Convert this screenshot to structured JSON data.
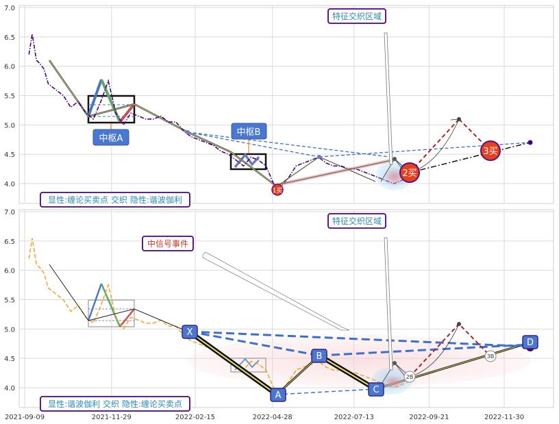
{
  "chart_data": [
    {
      "type": "line",
      "title": "",
      "ylim": [
        3.65,
        7.0
      ],
      "yticks": [
        4.0,
        4.5,
        5.0,
        5.5,
        6.0,
        6.5,
        7.0
      ],
      "grid": true,
      "series": [
        {
          "style": "dash-dot",
          "color": "#4b0082",
          "x": [
            "2021-09-13",
            "2021-09-16",
            "2021-09-20",
            "2021-09-23",
            "2021-09-27",
            "2021-10-01",
            "2021-10-08",
            "2021-10-15",
            "2021-10-22",
            "2021-10-29",
            "2021-11-05",
            "2021-11-12",
            "2021-11-19",
            "2021-11-26",
            "2021-12-03",
            "2021-12-10",
            "2021-12-17",
            "2021-12-24",
            "2021-12-31",
            "2022-01-07",
            "2022-01-14",
            "2022-01-21",
            "2022-01-28",
            "2022-02-04",
            "2022-02-11",
            "2022-02-18",
            "2022-02-25",
            "2022-03-04",
            "2022-03-11",
            "2022-03-18",
            "2022-03-25",
            "2022-04-01",
            "2022-04-08",
            "2022-04-15",
            "2022-04-22",
            "2022-04-29",
            "2022-05-06",
            "2022-05-13",
            "2022-05-20",
            "2022-05-27",
            "2022-06-03",
            "2022-06-10",
            "2022-06-17",
            "2022-06-24",
            "2022-07-01",
            "2022-07-08",
            "2022-07-15",
            "2022-07-22",
            "2022-07-29",
            "2022-08-05",
            "2022-08-12",
            "2022-08-19",
            "2022-08-26",
            "2022-09-02"
          ],
          "y": [
            6.2,
            6.55,
            6.1,
            6.05,
            5.95,
            5.7,
            5.6,
            5.5,
            5.3,
            5.4,
            5.2,
            5.1,
            5.4,
            5.75,
            5.2,
            5.0,
            5.2,
            5.15,
            5.1,
            5.1,
            5.15,
            5.05,
            5.05,
            4.9,
            4.8,
            4.75,
            4.7,
            4.65,
            4.55,
            4.5,
            4.4,
            4.3,
            4.45,
            4.4,
            4.3,
            4.0,
            3.95,
            4.1,
            4.3,
            4.35,
            4.4,
            4.45,
            4.35,
            4.3,
            4.3,
            4.25,
            4.25,
            4.2,
            4.15,
            4.1,
            4.05,
            4.0,
            4.05,
            4.1
          ]
        }
      ],
      "annotations": {
        "zhongshu": [
          {
            "label": "中枢A",
            "x_range": [
              "2021-11-19",
              "2022-01-02"
            ],
            "y_range": [
              5.02,
              5.48
            ]
          },
          {
            "label": "中枢B",
            "x_range": [
              "2022-03-28",
              "2022-04-24"
            ],
            "y_range": [
              4.27,
              4.5
            ]
          }
        ],
        "signals": [
          {
            "label": "1买",
            "x": "2022-05-06",
            "y": 3.92
          },
          {
            "label": "2买",
            "x": "2022-09-19",
            "y": 4.17
          },
          {
            "label": "3买",
            "x": "2022-11-24",
            "y": 4.57
          }
        ],
        "feature_region": "特征交织区域",
        "legend": "显性:缠论买卖点 交织 隐性:谐波伽利"
      }
    },
    {
      "type": "line",
      "title": "",
      "ylim": [
        3.65,
        7.0
      ],
      "yticks": [
        4.0,
        4.5,
        5.0,
        5.5,
        6.0,
        6.5,
        7.0
      ],
      "xticks": [
        "2021-09-09",
        "2021-11-29",
        "2022-02-15",
        "2022-04-28",
        "2022-07-13",
        "2022-09-21",
        "2022-11-30"
      ],
      "grid": true,
      "series": [
        {
          "style": "dashed",
          "color": "#f0a830",
          "x": [
            "2021-09-13",
            "2021-09-16",
            "2021-09-20",
            "2021-09-23",
            "2021-09-27",
            "2021-10-01",
            "2021-10-08",
            "2021-10-15",
            "2021-10-22",
            "2021-10-29",
            "2021-11-05",
            "2021-11-12",
            "2021-11-19",
            "2021-11-26",
            "2021-12-03",
            "2021-12-10",
            "2021-12-17",
            "2021-12-24",
            "2021-12-31",
            "2022-01-07",
            "2022-01-14",
            "2022-01-21",
            "2022-01-28",
            "2022-02-04",
            "2022-02-11",
            "2022-02-18",
            "2022-02-25",
            "2022-03-04",
            "2022-03-11",
            "2022-03-18",
            "2022-03-25",
            "2022-04-01",
            "2022-04-08",
            "2022-04-15",
            "2022-04-22",
            "2022-04-29",
            "2022-05-06",
            "2022-05-13",
            "2022-05-20",
            "2022-05-27",
            "2022-06-03",
            "2022-06-10",
            "2022-06-17",
            "2022-06-24",
            "2022-07-01",
            "2022-07-08",
            "2022-07-15",
            "2022-07-22",
            "2022-07-29",
            "2022-08-05",
            "2022-08-12",
            "2022-08-19",
            "2022-08-26",
            "2022-09-02"
          ],
          "y": [
            6.2,
            6.55,
            6.1,
            6.05,
            5.95,
            5.7,
            5.6,
            5.5,
            5.3,
            5.4,
            5.2,
            5.1,
            5.4,
            5.75,
            5.2,
            5.0,
            5.2,
            5.15,
            5.1,
            5.1,
            5.15,
            5.05,
            5.05,
            4.9,
            4.8,
            4.75,
            4.7,
            4.65,
            4.55,
            4.5,
            4.4,
            4.3,
            4.45,
            4.4,
            4.3,
            4.0,
            3.95,
            4.1,
            4.3,
            4.35,
            4.4,
            4.45,
            4.35,
            4.3,
            4.3,
            4.25,
            4.25,
            4.2,
            4.15,
            4.1,
            4.05,
            4.0,
            4.05,
            4.1
          ]
        }
      ],
      "annotations": {
        "harmonic_points": [
          {
            "label": "X",
            "x": "2022-02-15",
            "y": 4.93
          },
          {
            "label": "A",
            "x": "2022-05-03",
            "y": 3.94
          },
          {
            "label": "B",
            "x": "2022-07-05",
            "y": 4.55
          },
          {
            "label": "C",
            "x": "2022-08-31",
            "y": 4.0
          },
          {
            "label": "D",
            "x": "2022-12-23",
            "y": 4.74
          }
        ],
        "small_signal": "2B",
        "small_signal_2": "3B",
        "event": "中信号事件",
        "feature_region": "特征交织区域",
        "legend": "显性:谐波伽利 交织 隐性:缠论买卖点"
      }
    }
  ]
}
